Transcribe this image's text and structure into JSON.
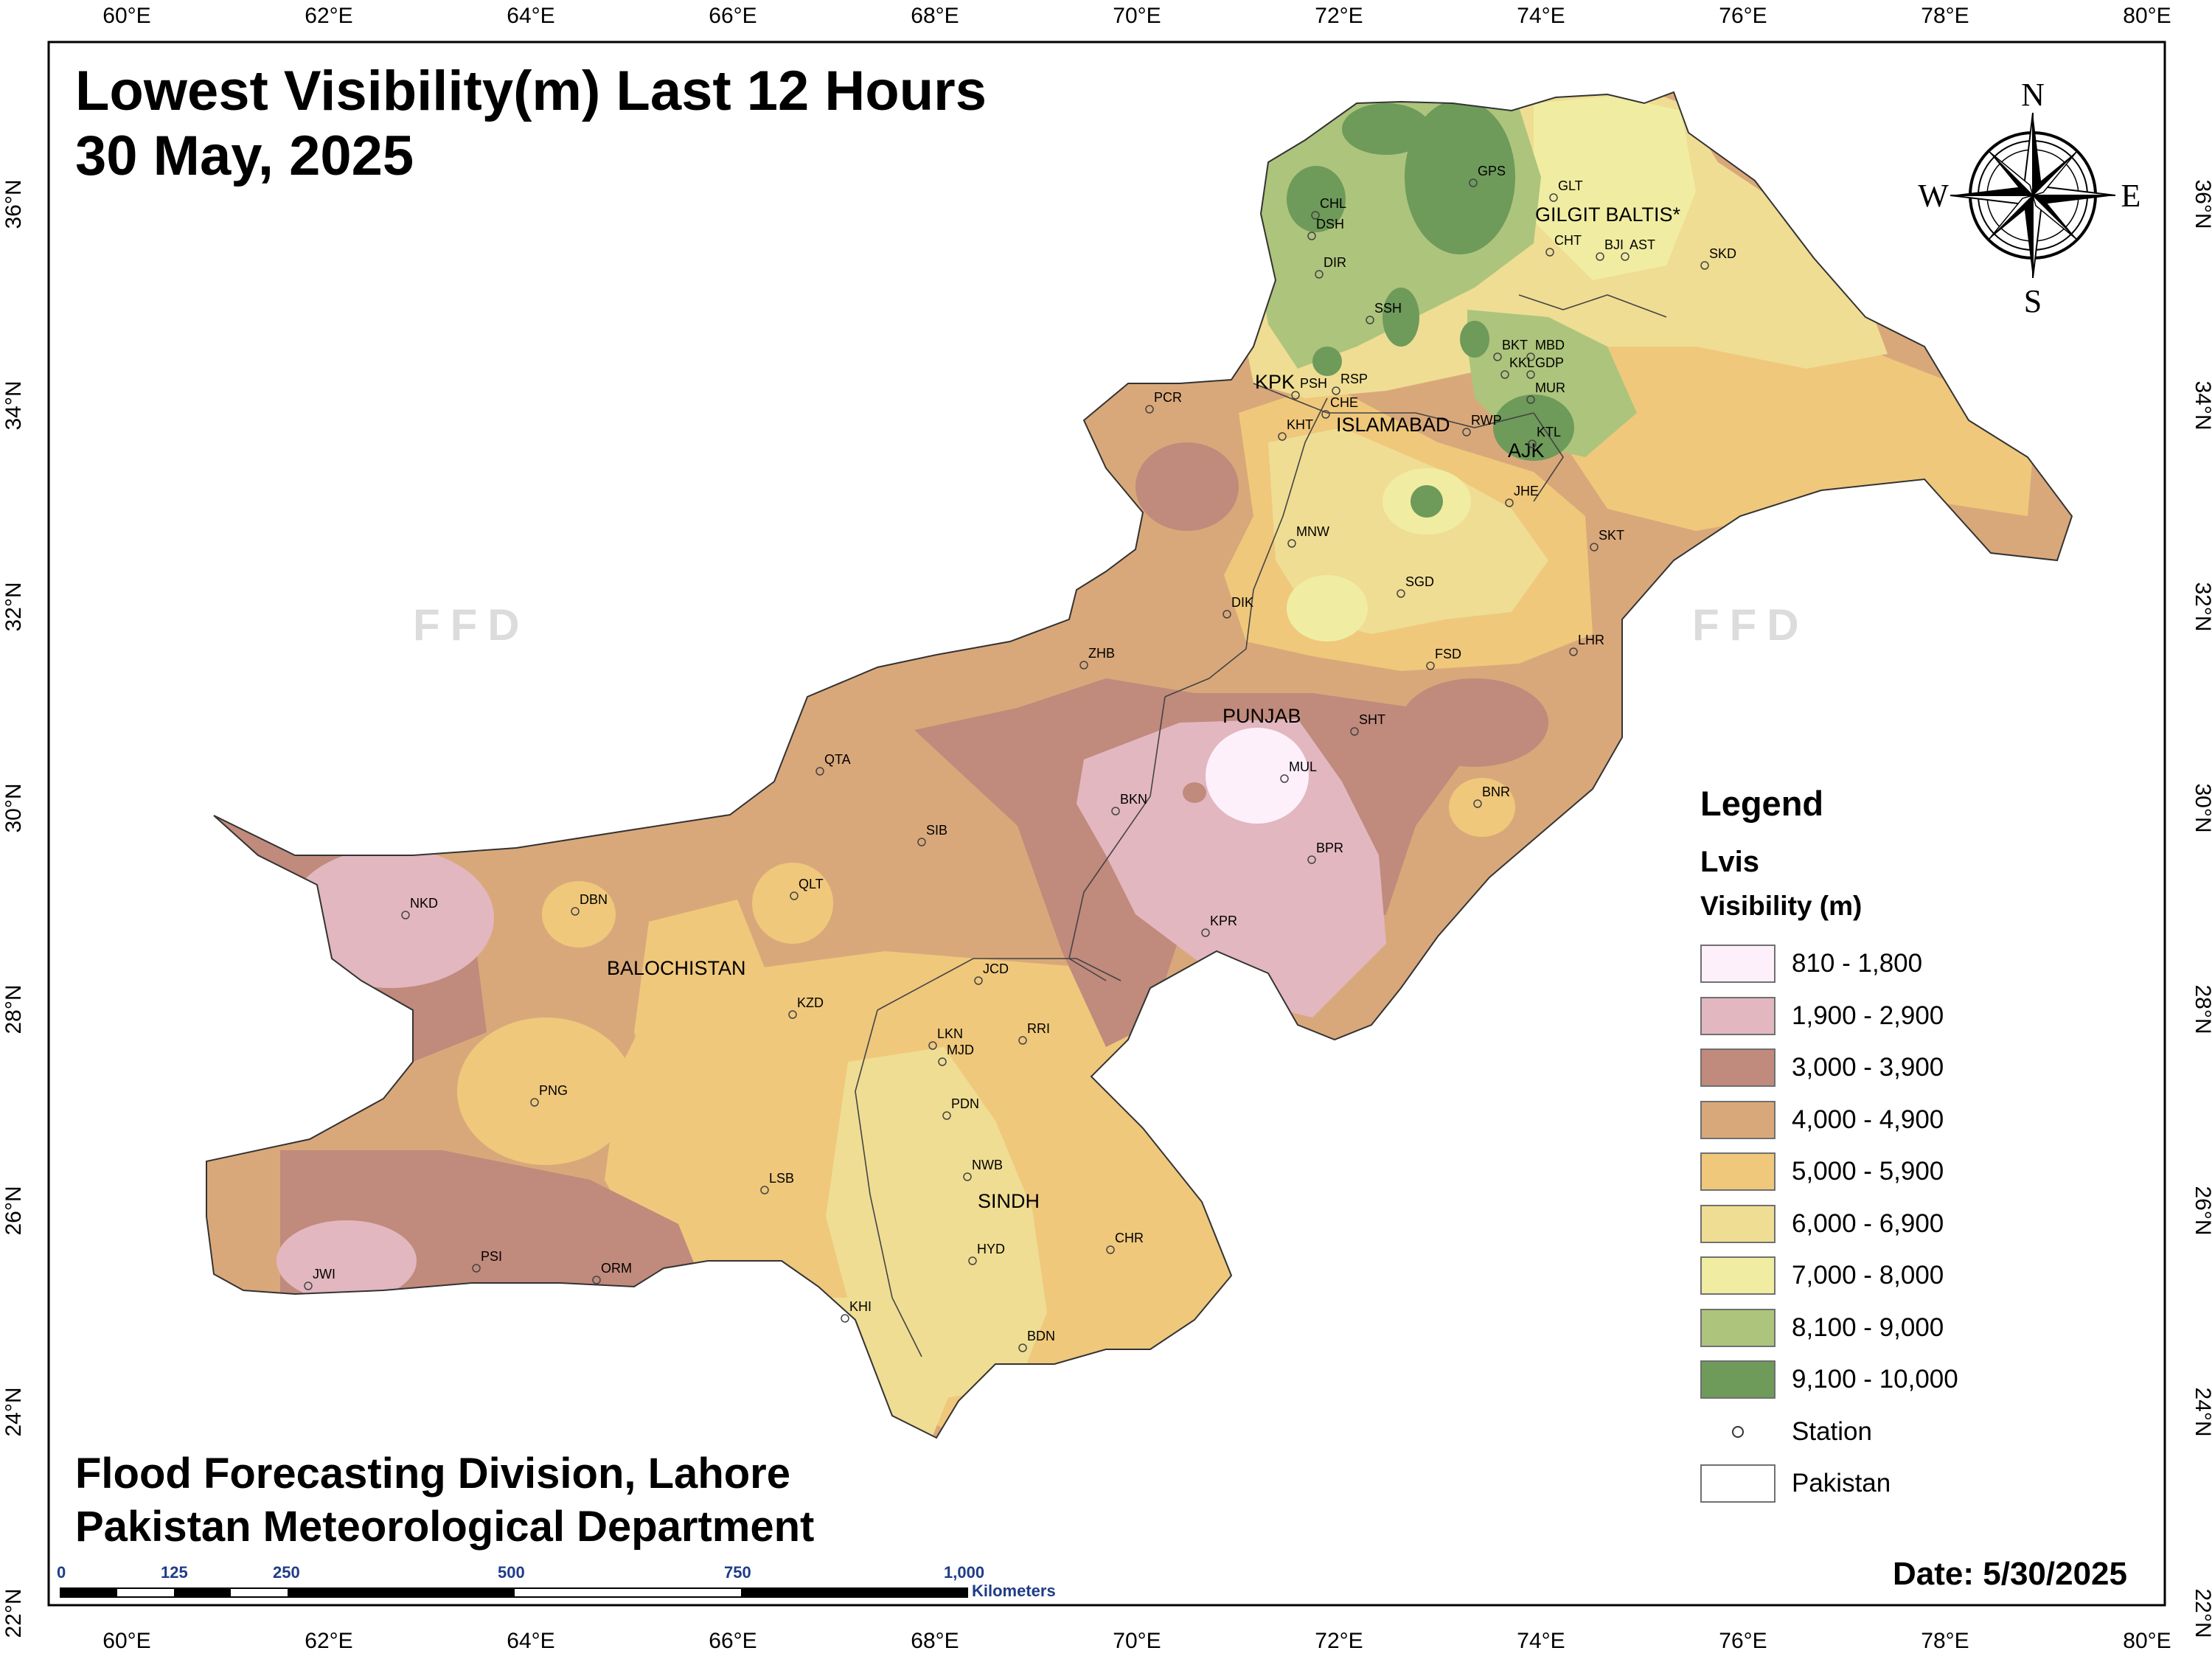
{
  "title": {
    "line1": "Lowest Visibility(m) Last 12 Hours",
    "line2": "30 May, 2025"
  },
  "organization": {
    "line1": "Flood Forecasting Division, Lahore",
    "line2": "Pakistan Meteorological Department"
  },
  "date_label": "Date: 5/30/2025",
  "watermark": "FFD",
  "grid": {
    "lon_labels": [
      "60°E",
      "62°E",
      "64°E",
      "66°E",
      "68°E",
      "70°E",
      "72°E",
      "74°E",
      "76°E",
      "78°E",
      "80°E"
    ],
    "lat_labels": [
      "22°N",
      "24°N",
      "26°N",
      "28°N",
      "30°N",
      "32°N",
      "34°N",
      "36°N"
    ]
  },
  "compass": {
    "n": "N",
    "e": "E",
    "s": "S",
    "w": "W"
  },
  "regions": [
    "GILGIT BALTIS*",
    "KPK",
    "ISLAMABAD",
    "AJK",
    "PUNJAB",
    "BALOCHISTAN",
    "SINDH"
  ],
  "stations": [
    "GPS",
    "GLT",
    "CHL",
    "DSH",
    "CHT",
    "BJI",
    "AST",
    "SKD",
    "DIR",
    "SSH",
    "BKT",
    "MBD",
    "KKL",
    "GDP",
    "MUR",
    "PCR",
    "PSH",
    "RSP",
    "CHE",
    "KHT",
    "RWP",
    "KTL",
    "JHE",
    "SKT",
    "MNW",
    "SGD",
    "DIK",
    "FSD",
    "LHR",
    "ZHB",
    "SHT",
    "MUL",
    "QTA",
    "BKN",
    "BNR",
    "SIB",
    "BPR",
    "NKD",
    "DBN",
    "QLT",
    "KPR",
    "JCD",
    "KZD",
    "RRI",
    "LKN",
    "MJD",
    "PNG",
    "PDN",
    "LSB",
    "NWB",
    "HYD",
    "CHR",
    "PSI",
    "ORM",
    "JWI",
    "KHI",
    "BDN"
  ],
  "legend": {
    "heading": "Legend",
    "layer": "Lvis",
    "unit": "Visibility (m)",
    "classes": [
      {
        "label": "810 - 1,800",
        "color": "#fdf0fb"
      },
      {
        "label": "1,900 - 2,900",
        "color": "#e2b7c0"
      },
      {
        "label": "3,000 - 3,900",
        "color": "#c08a7c"
      },
      {
        "label": "4,000 - 4,900",
        "color": "#d9a87a"
      },
      {
        "label": "5,000 - 5,900",
        "color": "#efc87c"
      },
      {
        "label": "6,000 - 6,900",
        "color": "#efdd93"
      },
      {
        "label": "7,000 - 8,000",
        "color": "#f0eda2"
      },
      {
        "label": "8,100 - 9,000",
        "color": "#adc47c"
      },
      {
        "label": "9,100 - 10,000",
        "color": "#6e9a5a"
      }
    ],
    "station_label": "Station",
    "boundary_label": "Pakistan"
  },
  "scale_bar": {
    "ticks": [
      "0",
      "125",
      "250",
      "500",
      "750",
      "1,000"
    ],
    "unit": "Kilometers"
  }
}
